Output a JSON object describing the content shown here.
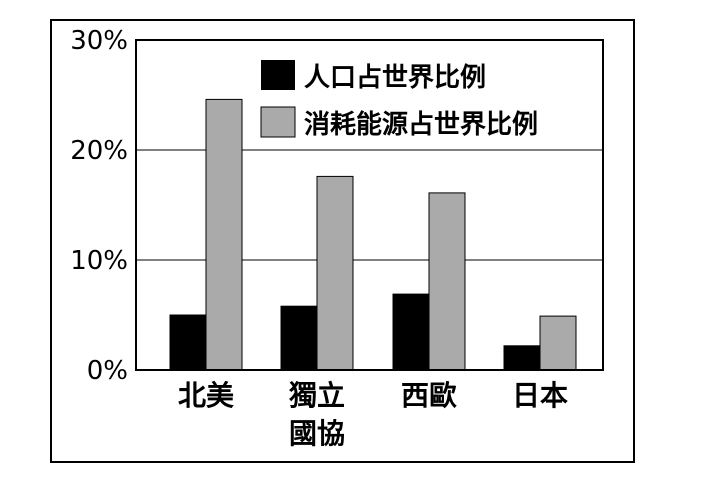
{
  "chart_data": {
    "type": "bar",
    "categories": [
      "北美",
      "獨立國協",
      "西歐",
      "日本"
    ],
    "category_lines": [
      [
        "北美"
      ],
      [
        "獨立",
        "國協"
      ],
      [
        "西歐"
      ],
      [
        "日本"
      ]
    ],
    "series": [
      {
        "name": "人口占世界比例",
        "color": "#000000",
        "values": [
          5.0,
          5.8,
          6.9,
          2.2
        ]
      },
      {
        "name": "消耗能源占世界比例",
        "color": "#aaaaaa",
        "values": [
          24.6,
          17.6,
          16.1,
          4.9
        ]
      }
    ],
    "yticks": [
      "0%",
      "10%",
      "20%",
      "30%"
    ],
    "ytick_values": [
      0,
      10,
      20,
      30
    ],
    "ylim": [
      0,
      30
    ],
    "grid": true,
    "legend_position": "top-right"
  }
}
